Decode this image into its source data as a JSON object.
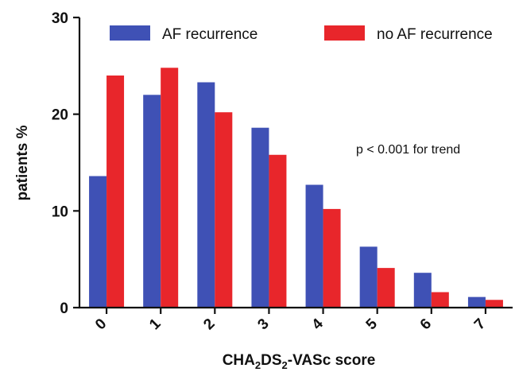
{
  "chart_data": {
    "type": "bar",
    "categories": [
      "0",
      "1",
      "2",
      "3",
      "4",
      "5",
      "6",
      "7"
    ],
    "series": [
      {
        "name": "AF recurrence",
        "color": "#3f51b5",
        "values": [
          13.6,
          22.0,
          23.3,
          18.6,
          12.7,
          6.3,
          3.6,
          1.1
        ]
      },
      {
        "name": "no AF recurrence",
        "color": "#e8262b",
        "values": [
          24.0,
          24.8,
          20.2,
          15.8,
          10.2,
          4.1,
          1.6,
          0.8
        ]
      }
    ],
    "ylim": [
      0,
      30
    ],
    "yticks": [
      "0",
      "10",
      "20",
      "30"
    ],
    "ylabel": "patients %",
    "xlabel": {
      "base": "CHA",
      "sub1": "2",
      "mid": "DS",
      "sub2": "2",
      "tail": "-VASc score"
    },
    "annotation": "p < 0.001 for trend",
    "legend_position": "top",
    "grid": false
  }
}
